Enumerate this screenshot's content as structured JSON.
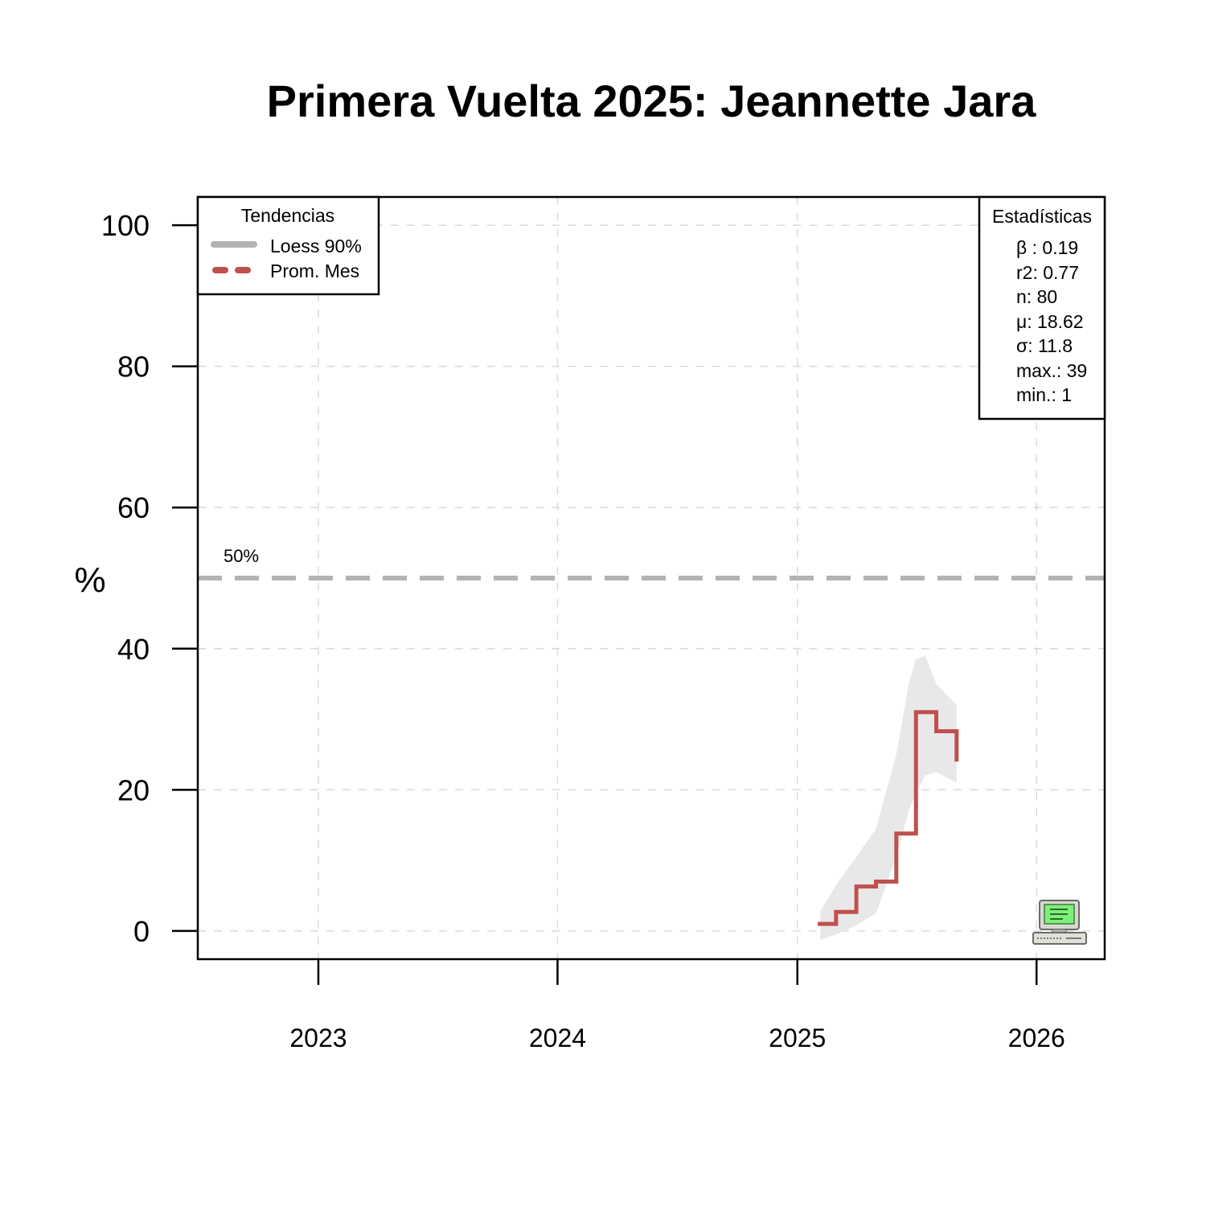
{
  "chart_data": {
    "type": "line",
    "title": "Primera Vuelta 2025: Jeannette Jara",
    "xlabel": "",
    "ylabel": "%",
    "x_axis": {
      "type": "date",
      "range": [
        "2022-07-01",
        "2026-04-15"
      ],
      "tick_labels": [
        "2023",
        "2024",
        "2025",
        "2026"
      ],
      "ticks": [
        "2023-01-01",
        "2024-01-01",
        "2025-01-01",
        "2026-01-01"
      ]
    },
    "y_axis": {
      "range": [
        -4,
        104
      ],
      "ticks": [
        0,
        20,
        40,
        60,
        80,
        100
      ],
      "tick_labels": [
        "0",
        "20",
        "40",
        "60",
        "80",
        "100"
      ]
    },
    "grid": true,
    "reference_line": {
      "value": 50,
      "label": "50%",
      "color": "#b3b3b3"
    },
    "series": [
      {
        "name": "Prom. Mes",
        "style": "step",
        "color": "#c0504d",
        "x": [
          "2025-02-01",
          "2025-03-01",
          "2025-04-01",
          "2025-05-01",
          "2025-06-01",
          "2025-07-01",
          "2025-08-01",
          "2025-09-01",
          "2025-09-01"
        ],
        "y": [
          1,
          2.7,
          6.3,
          7,
          13.8,
          31,
          28.3,
          28.3,
          24
        ]
      },
      {
        "name": "Loess 90%",
        "style": "band",
        "color": "#e8e8e8",
        "x": [
          "2025-02-05",
          "2025-03-01",
          "2025-04-01",
          "2025-05-01",
          "2025-06-01",
          "2025-06-20",
          "2025-07-01",
          "2025-07-15",
          "2025-08-01",
          "2025-09-01"
        ],
        "lower": [
          -1.3,
          -0.5,
          0.8,
          2.5,
          10.5,
          17,
          19.5,
          22,
          22.5,
          21
        ],
        "upper": [
          2.8,
          6.5,
          10.5,
          14.5,
          25,
          35,
          38.5,
          39,
          35,
          32
        ]
      }
    ],
    "legend": {
      "title": "Tendencias",
      "placement": "top-left",
      "entries": [
        {
          "label": "Loess 90%",
          "color": "#b3b3b3",
          "line": "solid"
        },
        {
          "label": "Prom. Mes",
          "color": "#c0504d",
          "line": "dashed"
        }
      ]
    },
    "stats_box": {
      "title": "Estadísticas",
      "placement": "top-right",
      "lines": [
        "β : 0.19",
        "r2: 0.77",
        "n: 80",
        "μ: 18.62",
        "σ: 11.8",
        "max.: 39",
        "min.: 1"
      ]
    },
    "watermark_icon": "computer-icon"
  }
}
